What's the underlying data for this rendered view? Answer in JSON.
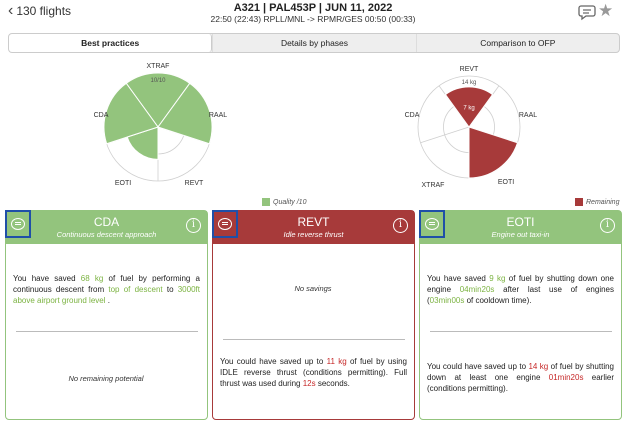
{
  "header": {
    "back_label": "130 flights",
    "title": "A321 | PAL453P | JUN 11, 2022",
    "subtitle": "22:50 (22:43) RPLL/MNL -> RPMR/GES 00:50 (00:33)"
  },
  "tabs": [
    {
      "label": "Best practices",
      "active": true
    },
    {
      "label": "Details by phases",
      "active": false
    },
    {
      "label": "Comparison to OFP",
      "active": false
    }
  ],
  "colors": {
    "green": "#93c47d",
    "red": "#a73a3a"
  },
  "chart_data": [
    {
      "type": "polar-area",
      "title": "",
      "categories": [
        "XTRAF",
        "RAAL",
        "REVT",
        "EOTI",
        "CDA"
      ],
      "series": [
        {
          "name": "Quality /10",
          "values": [
            10,
            10,
            0,
            6,
            10
          ]
        }
      ],
      "scale_label": "10/10",
      "rlim": [
        0,
        10
      ]
    },
    {
      "type": "polar-area",
      "title": "",
      "categories": [
        "REVT",
        "RAAL",
        "EOTI",
        "XTRAF",
        "CDA"
      ],
      "series": [
        {
          "name": "Remaining",
          "values": [
            11,
            0,
            14,
            0,
            0
          ]
        }
      ],
      "scale_labels": [
        "14 kg",
        "7 kg"
      ],
      "rlim": [
        0,
        14
      ]
    }
  ],
  "legend": {
    "left": "Quality /10",
    "right": "Remaining"
  },
  "cards": {
    "cda": {
      "title": "CDA",
      "subtitle": "Continuous descent approach",
      "t1": "You have saved ",
      "h1": "68 kg",
      "t2": " of fuel by performing a continuous descent from ",
      "h2": "top of descent",
      "t3": " to ",
      "h3": "3000ft above airport ground level",
      "t4": " .",
      "bottom": "No remaining potential"
    },
    "revt": {
      "title": "REVT",
      "subtitle": "Idle reverse thrust",
      "top": "No savings",
      "t1": "You could have saved up to ",
      "h1": "11 kg",
      "t2": " of fuel by using IDLE reverse thrust (conditions permitting). Full thrust was used during ",
      "h2": "12s",
      "t3": " seconds."
    },
    "eoti": {
      "title": "EOTI",
      "subtitle": "Engine out taxi-in",
      "t1": "You have saved ",
      "h1": "9 kg",
      "t2": " of fuel by shutting down one engine ",
      "h2": "04min20s",
      "t3": " after last use of engines (",
      "h3": "03min00s",
      "t4": " of cooldown time).",
      "b1": "You could have saved up to ",
      "bh1": "14 kg",
      "b2": " of fuel by shutting down at least one engine ",
      "bh2": "01min20s",
      "b3": " earlier (conditions permitting)."
    }
  }
}
